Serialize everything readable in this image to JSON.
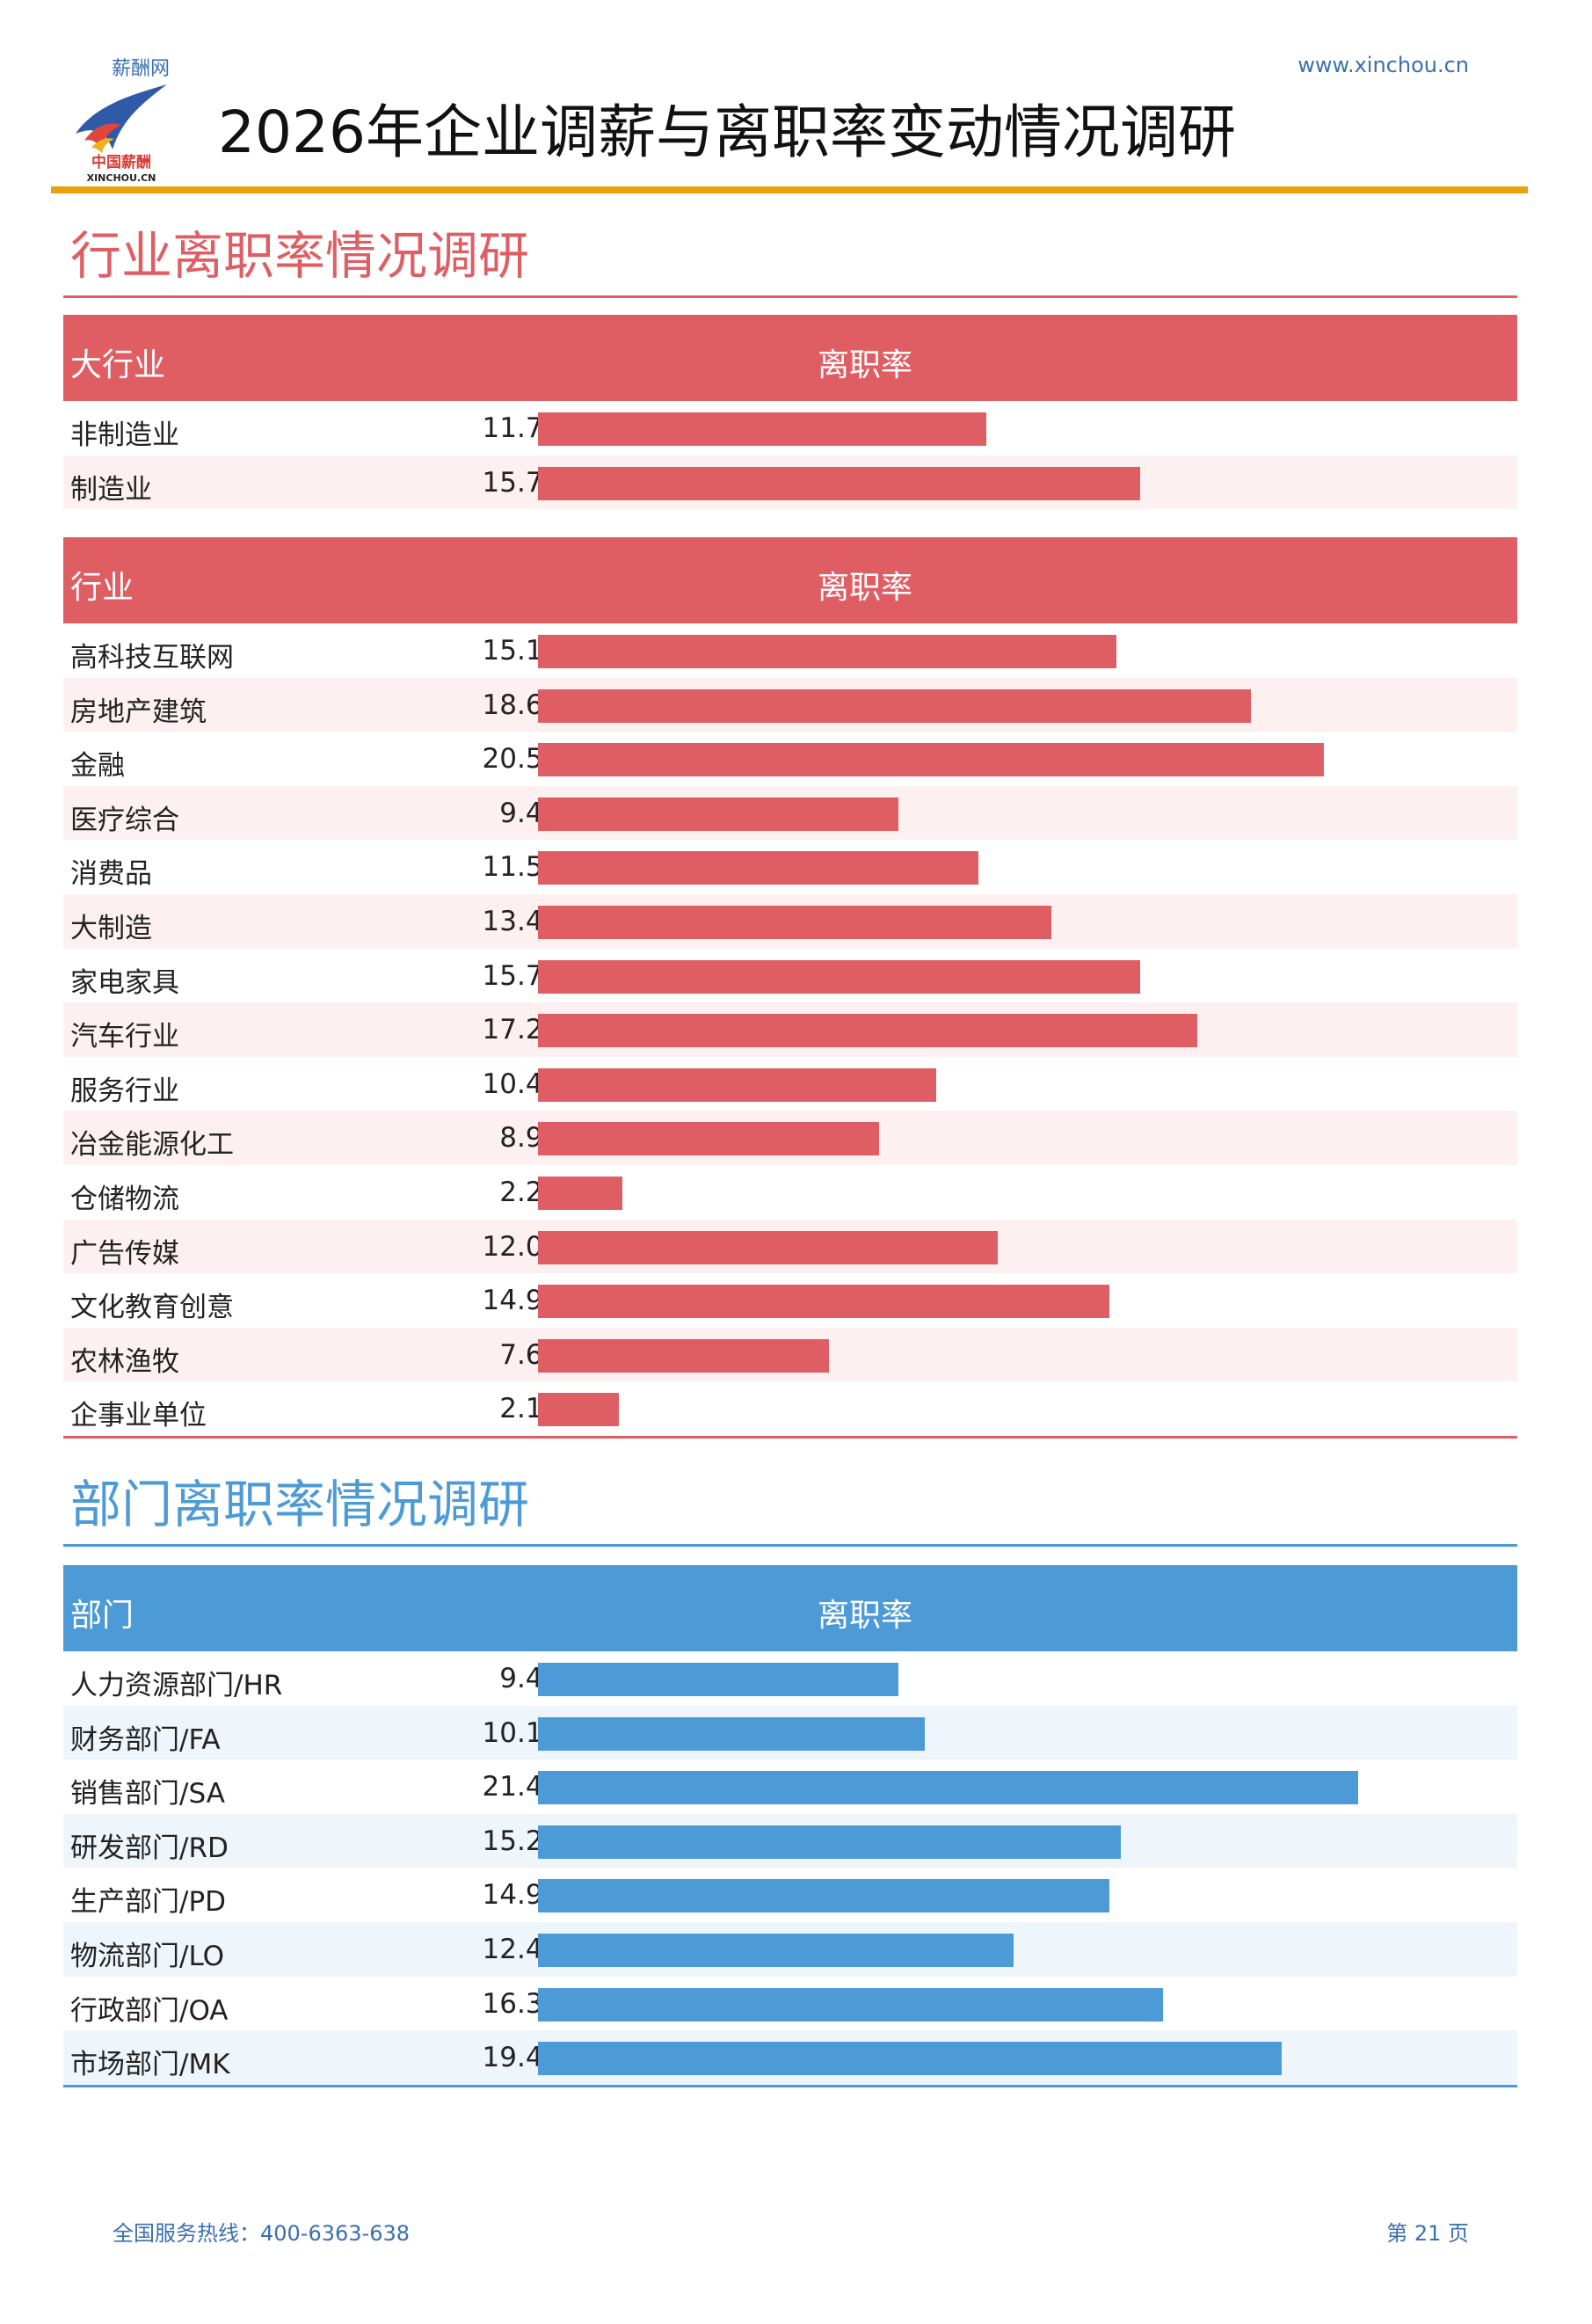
{
  "header": {
    "brand_small": "薪酬网",
    "logo_text_cn": "中国薪酬",
    "logo_text_en": "XINCHOU.CN",
    "site_url": "www.xinchou.cn",
    "title": "2026年企业调薪与离职率变动情况调研"
  },
  "colors": {
    "accent_red": "#df5e63",
    "accent_blue": "#4c9bd6",
    "header_rule": "#e8a30c"
  },
  "industry_section": {
    "title": "行业离职率情况调研",
    "major": {
      "col1": "大行业",
      "col2": "离职率",
      "rows": [
        {
          "name": "非制造业",
          "value": "11.7%",
          "rate": 11.7
        },
        {
          "name": "制造业",
          "value": "15.7%",
          "rate": 15.7
        }
      ]
    },
    "detail": {
      "col1": "行业",
      "col2": "离职率",
      "rows": [
        {
          "name": "高科技互联网",
          "value": "15.1%",
          "rate": 15.1
        },
        {
          "name": "房地产建筑",
          "value": "18.6%",
          "rate": 18.6
        },
        {
          "name": "金融",
          "value": "20.5%",
          "rate": 20.5
        },
        {
          "name": "医疗综合",
          "value": "9.4%",
          "rate": 9.4
        },
        {
          "name": "消费品",
          "value": "11.5%",
          "rate": 11.5
        },
        {
          "name": "大制造",
          "value": "13.4%",
          "rate": 13.4
        },
        {
          "name": "家电家具",
          "value": "15.7%",
          "rate": 15.7
        },
        {
          "name": "汽车行业",
          "value": "17.2%",
          "rate": 17.2
        },
        {
          "name": "服务行业",
          "value": "10.4%",
          "rate": 10.4
        },
        {
          "name": "冶金能源化工",
          "value": "8.9%",
          "rate": 8.9
        },
        {
          "name": "仓储物流",
          "value": "2.2%",
          "rate": 2.2
        },
        {
          "name": "广告传媒",
          "value": "12.0%",
          "rate": 12.0
        },
        {
          "name": "文化教育创意",
          "value": "14.9%",
          "rate": 14.9
        },
        {
          "name": "农林渔牧",
          "value": "7.6%",
          "rate": 7.6
        },
        {
          "name": "企事业单位",
          "value": "2.1%",
          "rate": 2.1
        }
      ]
    }
  },
  "dept_section": {
    "title": "部门离职率情况调研",
    "col1": "部门",
    "col2": "离职率",
    "rows": [
      {
        "name": "人力资源部门/HR",
        "value": "9.4%",
        "rate": 9.4
      },
      {
        "name": "财务部门/FA",
        "value": "10.1%",
        "rate": 10.1
      },
      {
        "name": "销售部门/SA",
        "value": "21.4%",
        "rate": 21.4
      },
      {
        "name": "研发部门/RD",
        "value": "15.2%",
        "rate": 15.2
      },
      {
        "name": "生产部门/PD",
        "value": "14.9%",
        "rate": 14.9
      },
      {
        "name": "物流部门/LO",
        "value": "12.4%",
        "rate": 12.4
      },
      {
        "name": "行政部门/OA",
        "value": "16.3%",
        "rate": 16.3
      },
      {
        "name": "市场部门/MK",
        "value": "19.4%",
        "rate": 19.4
      }
    ]
  },
  "footer": {
    "hotline": "全国服务热线：400-6363-638",
    "page": "第 21 页"
  }
}
